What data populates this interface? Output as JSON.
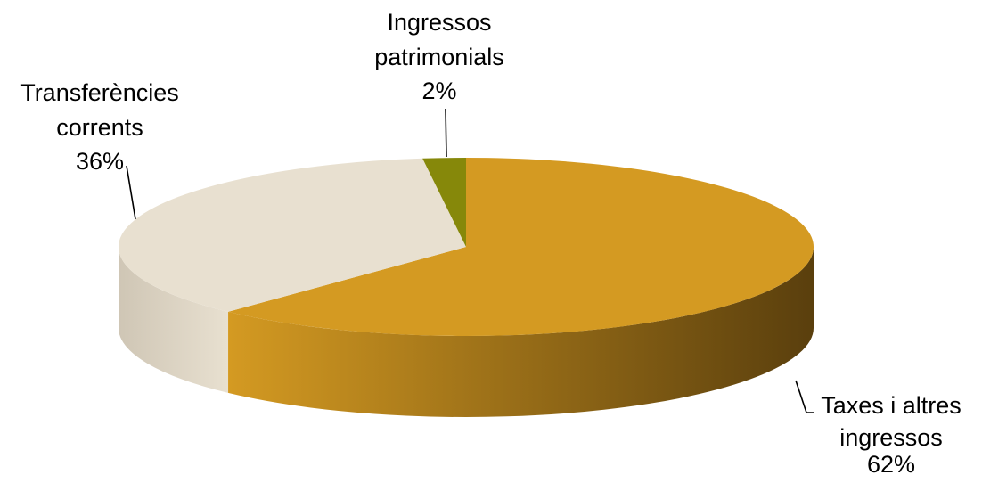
{
  "chart_data": {
    "type": "pie",
    "style": "3d",
    "title": "",
    "slices": [
      {
        "name": "Taxes i altres ingressos",
        "label_lines": [
          "Taxes i altres",
          "ingressos"
        ],
        "percent_label": "62%",
        "value": 62,
        "color": "#D49A22",
        "side_dark": "#5A3F0D"
      },
      {
        "name": "Transferències corrents",
        "label_lines": [
          "Transferències",
          "corrents"
        ],
        "percent_label": "36%",
        "value": 36,
        "color": "#E8E0D0",
        "side_dark": "#CFC6B5"
      },
      {
        "name": "Ingressos patrimonials",
        "label_lines": [
          "Ingressos",
          "patrimonials"
        ],
        "percent_label": "2%",
        "value": 2,
        "color": "#86880A",
        "side_dark": "#5F6107"
      }
    ]
  }
}
